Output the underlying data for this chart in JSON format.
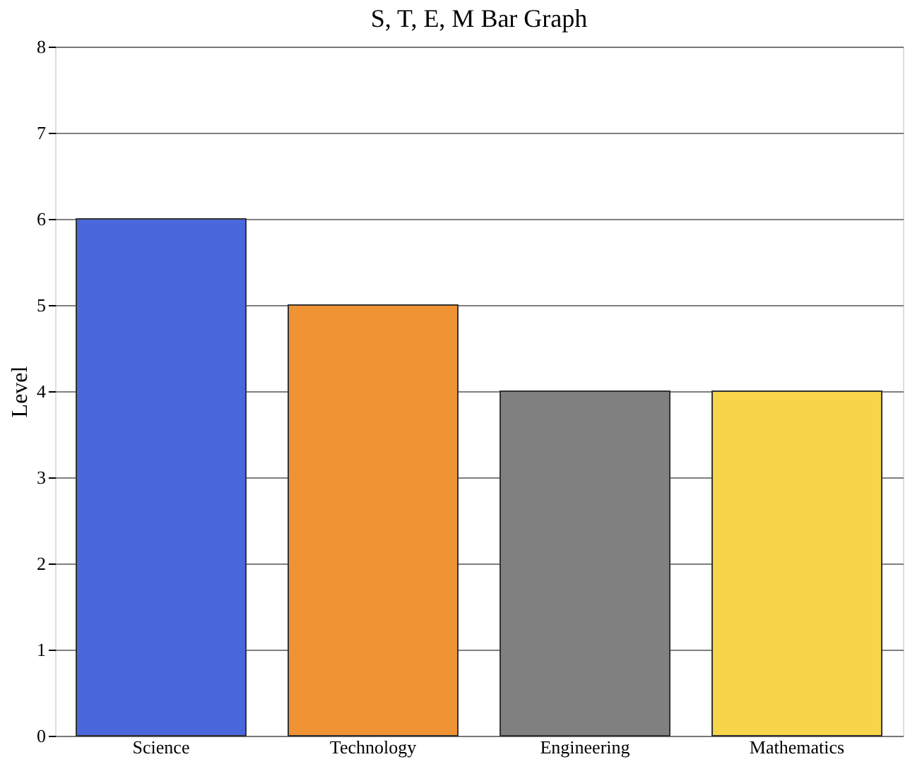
{
  "chart_data": {
    "type": "bar",
    "title": "S, T, E, M Bar Graph",
    "ylabel": "Level",
    "categories": [
      "Science",
      "Technology",
      "Engineering",
      "Mathematics"
    ],
    "values": [
      6,
      5,
      4,
      4
    ],
    "colors": [
      "#4a67db",
      "#ef9334",
      "#808080",
      "#f7d54a"
    ],
    "ylim": [
      0,
      8
    ],
    "yticks": [
      0,
      1,
      2,
      3,
      4,
      5,
      6,
      7,
      8
    ],
    "grid": "y"
  }
}
